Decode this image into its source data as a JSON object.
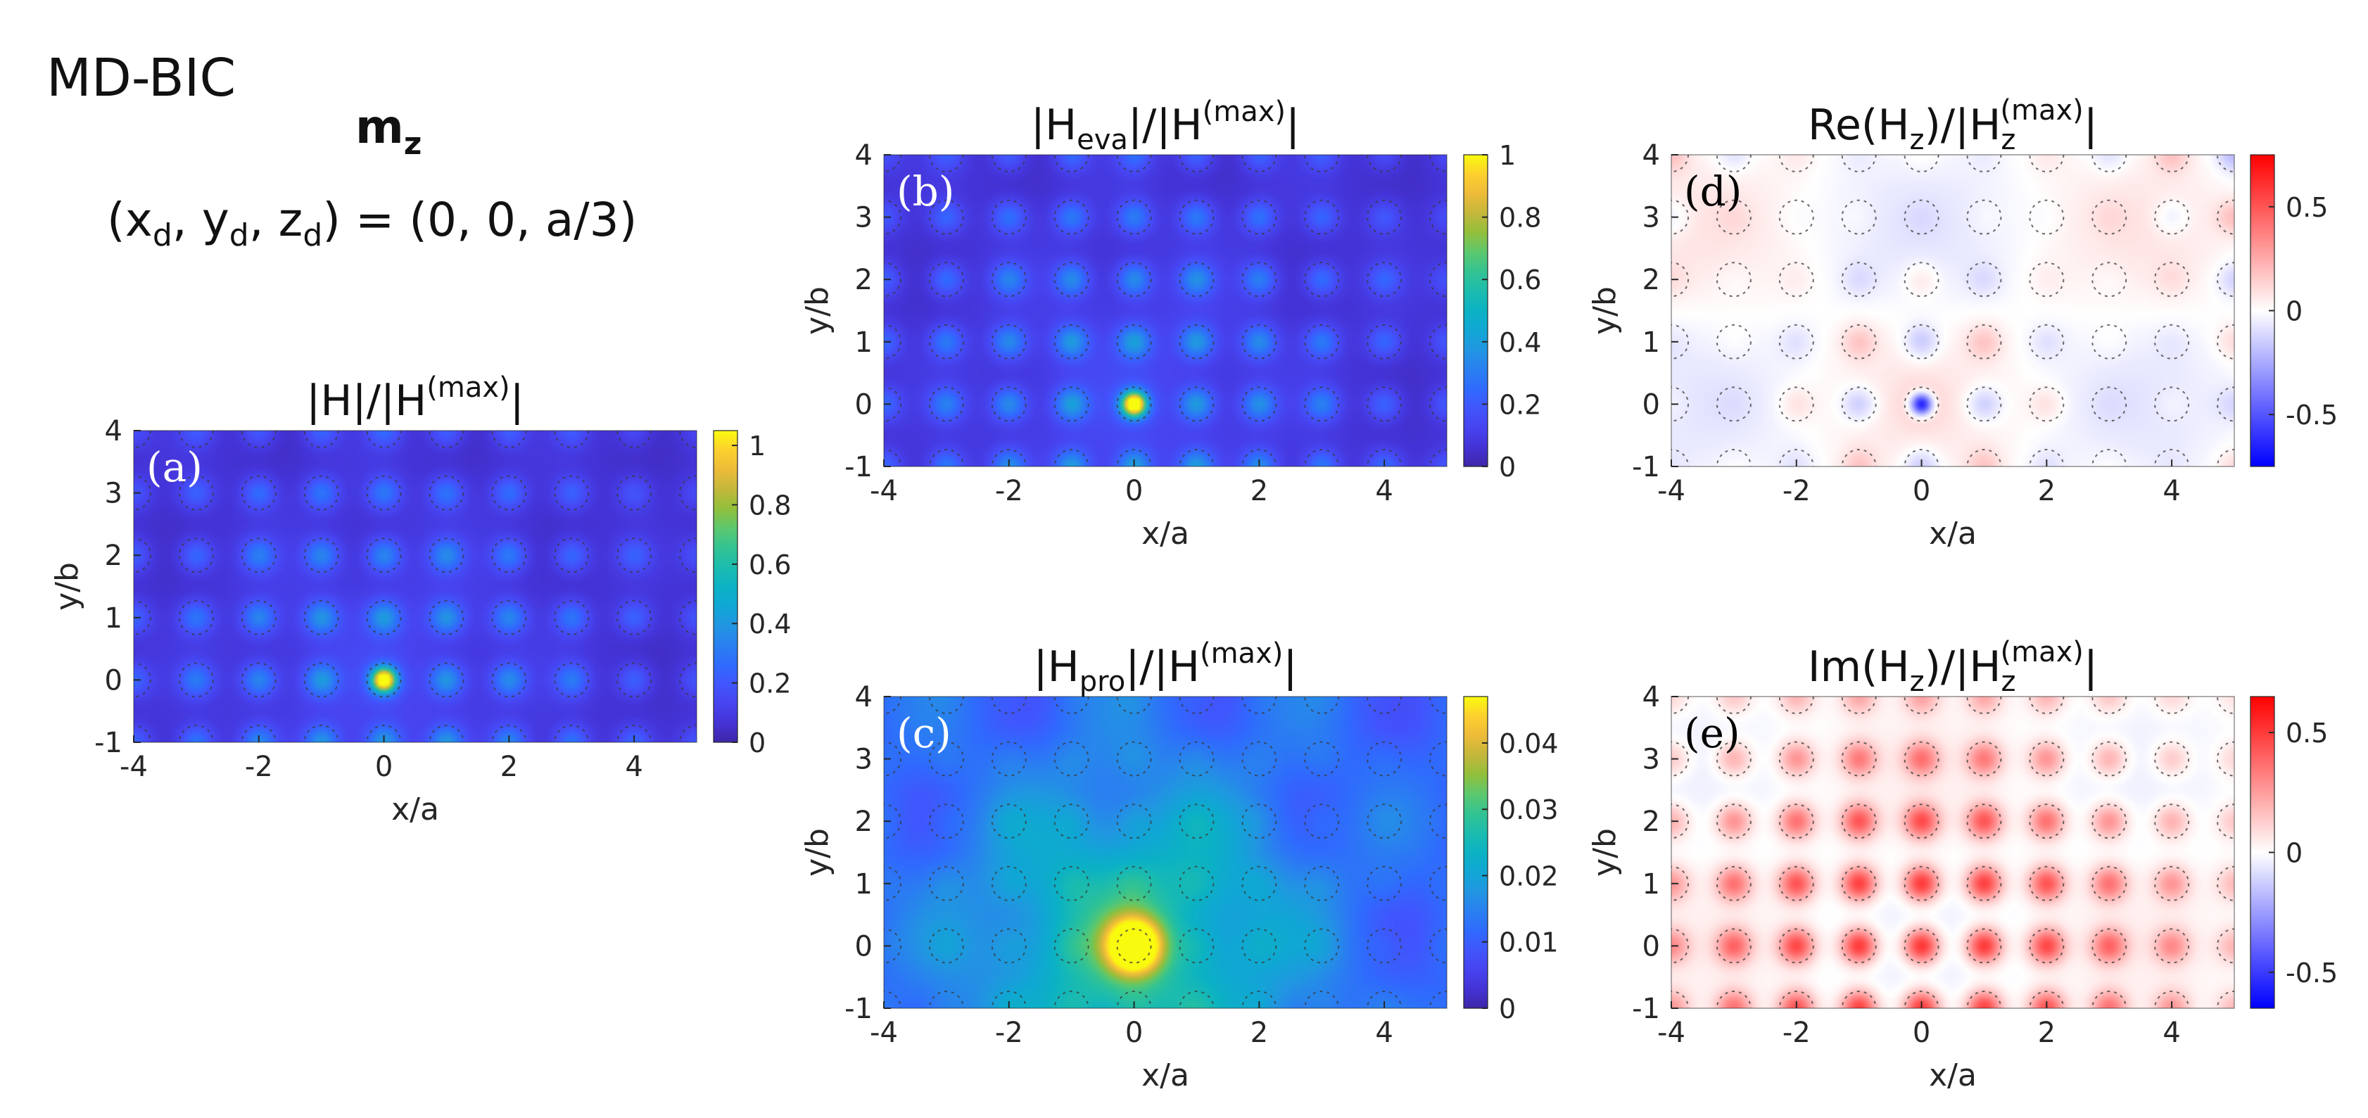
{
  "figure": {
    "label": "MD-BIC",
    "dipole": "m",
    "dipole_sub": "z",
    "position": {
      "open": "(x",
      "xs": "d",
      "sep1": ", y",
      "ys": "d",
      "sep2": ", z",
      "zs": "d",
      "rest": ") = (0, 0, a/3)"
    }
  },
  "colors": {
    "parula": [
      "#3e26a8",
      "#4433d6",
      "#4744f0",
      "#4156fd",
      "#2f6bfd",
      "#2a80f0",
      "#2196e1",
      "#10a7d4",
      "#0cb2c4",
      "#1cbcae",
      "#33c392",
      "#5dc86e",
      "#92bf3b",
      "#c4b73b",
      "#edbb39",
      "#fdd02e",
      "#f9fb0e"
    ],
    "bwr": [
      "#0000ff",
      "#ffffff",
      "#ff0000"
    ],
    "ring": "#3a3a3a",
    "axis": "#262626"
  },
  "chart_data": [
    {
      "id": "a",
      "panel_label": "(a)",
      "type": "heatmap",
      "colormap": "parula",
      "title": "|H|/|H^(max)|",
      "title_parts": {
        "pre": "|H|/|H",
        "sup": "(max)",
        "post": "|"
      },
      "xlabel": "x/a",
      "ylabel": "y/b",
      "xlim": [
        -4,
        5
      ],
      "ylim": [
        -1,
        4
      ],
      "xticks": [
        "-4",
        "-2",
        "0",
        "2",
        "4"
      ],
      "yticks": [
        "-1",
        "0",
        "1",
        "2",
        "3",
        "4"
      ],
      "clim": [
        0,
        1.05
      ],
      "cticks": [
        "0",
        "0.2",
        "0.4",
        "0.6",
        "0.8",
        "1"
      ],
      "cticks_values": [
        0,
        0.2,
        0.4,
        0.6,
        0.8,
        1
      ],
      "field": {
        "base": 0.06,
        "spot_amp": 0.3,
        "spot_width": 0.19,
        "peak": [
          0,
          0
        ],
        "peak_amp": 0.9,
        "peak_width": 0.12,
        "envelope": 0.2
      }
    },
    {
      "id": "b",
      "panel_label": "(b)",
      "type": "heatmap",
      "colormap": "parula",
      "title": "|H_eva|/|H^(max)|",
      "title_parts": {
        "pre": "|H",
        "sub": "eva",
        "mid": "|/|H",
        "sup": "(max)",
        "post": "|"
      },
      "xlabel": "x/a",
      "ylabel": "y/b",
      "xlim": [
        -4,
        5
      ],
      "ylim": [
        -1,
        4
      ],
      "xticks": [
        "-4",
        "-2",
        "0",
        "2",
        "4"
      ],
      "yticks": [
        "-1",
        "0",
        "1",
        "2",
        "3",
        "4"
      ],
      "clim": [
        0,
        1
      ],
      "cticks": [
        "0",
        "0.2",
        "0.4",
        "0.6",
        "0.8",
        "1"
      ],
      "cticks_values": [
        0,
        0.2,
        0.4,
        0.6,
        0.8,
        1
      ],
      "field": {
        "base": 0.06,
        "spot_amp": 0.3,
        "spot_width": 0.19,
        "peak": [
          0,
          0
        ],
        "peak_amp": 0.9,
        "peak_width": 0.12,
        "envelope": 0.2
      }
    },
    {
      "id": "c",
      "panel_label": "(c)",
      "type": "heatmap",
      "colormap": "parula",
      "title": "|H_pro|/|H^(max)|",
      "title_parts": {
        "pre": "|H",
        "sub": "pro",
        "mid": "|/|H",
        "sup": "(max)",
        "post": "|"
      },
      "xlabel": "x/a",
      "ylabel": "y/b",
      "xlim": [
        -4,
        5
      ],
      "ylim": [
        -1,
        4
      ],
      "xticks": [
        "-4",
        "-2",
        "0",
        "2",
        "4"
      ],
      "yticks": [
        "-1",
        "0",
        "1",
        "2",
        "3",
        "4"
      ],
      "clim": [
        0,
        0.047
      ],
      "cticks": [
        "0",
        "0.01",
        "0.02",
        "0.03",
        "0.04"
      ],
      "cticks_values": [
        0,
        0.01,
        0.02,
        0.03,
        0.04
      ],
      "field": {
        "base": 0.011,
        "spot_amp": 0.0025,
        "spot_width": 0.22,
        "peak": [
          0,
          0
        ],
        "peak_amp": 0.036,
        "peak_width": 0.3,
        "envelope": 0.05
      }
    },
    {
      "id": "d",
      "panel_label": "(d)",
      "type": "heatmap",
      "colormap": "bwr",
      "title": "Re(H_z)/|H_z^(max)|",
      "title_parts": {
        "pre": "Re(H",
        "sub": "z",
        "mid": ")/|H",
        "sub2": "z",
        "sup": "(max)",
        "post": "|"
      },
      "xlabel": "x/a",
      "ylabel": "y/b",
      "xlim": [
        -4,
        5
      ],
      "ylim": [
        -1,
        4
      ],
      "xticks": [
        "-4",
        "-2",
        "0",
        "2",
        "4"
      ],
      "yticks": [
        "-1",
        "0",
        "1",
        "2",
        "3",
        "4"
      ],
      "clim": [
        -0.75,
        0.75
      ],
      "cticks": [
        "-0.5",
        "0",
        "0.5"
      ],
      "cticks_values": [
        -0.5,
        0,
        0.5
      ],
      "field": {
        "mode": "re",
        "spot_amp": 0.22,
        "spot_width": 0.2,
        "peak": [
          0,
          0
        ],
        "peak_amp": -0.95,
        "peak_width": 0.13,
        "background": 0.08
      }
    },
    {
      "id": "e",
      "panel_label": "(e)",
      "type": "heatmap",
      "colormap": "bwr",
      "title": "Im(H_z)/|H_z^(max)|",
      "title_parts": {
        "pre": "Im(H",
        "sub": "z",
        "mid": ")/|H",
        "sub2": "z",
        "sup": "(max)",
        "post": "|"
      },
      "xlabel": "x/a",
      "ylabel": "y/b",
      "xlim": [
        -4,
        5
      ],
      "ylim": [
        -1,
        4
      ],
      "xticks": [
        "-4",
        "-2",
        "0",
        "2",
        "4"
      ],
      "yticks": [
        "-1",
        "0",
        "1",
        "2",
        "3",
        "4"
      ],
      "clim": [
        -0.65,
        0.65
      ],
      "cticks": [
        "-0.5",
        "0",
        "0.5"
      ],
      "cticks_values": [
        -0.5,
        0,
        0.5
      ],
      "field": {
        "mode": "im",
        "spot_amp": 0.55,
        "spot_width": 0.2,
        "background": -0.04
      }
    }
  ]
}
